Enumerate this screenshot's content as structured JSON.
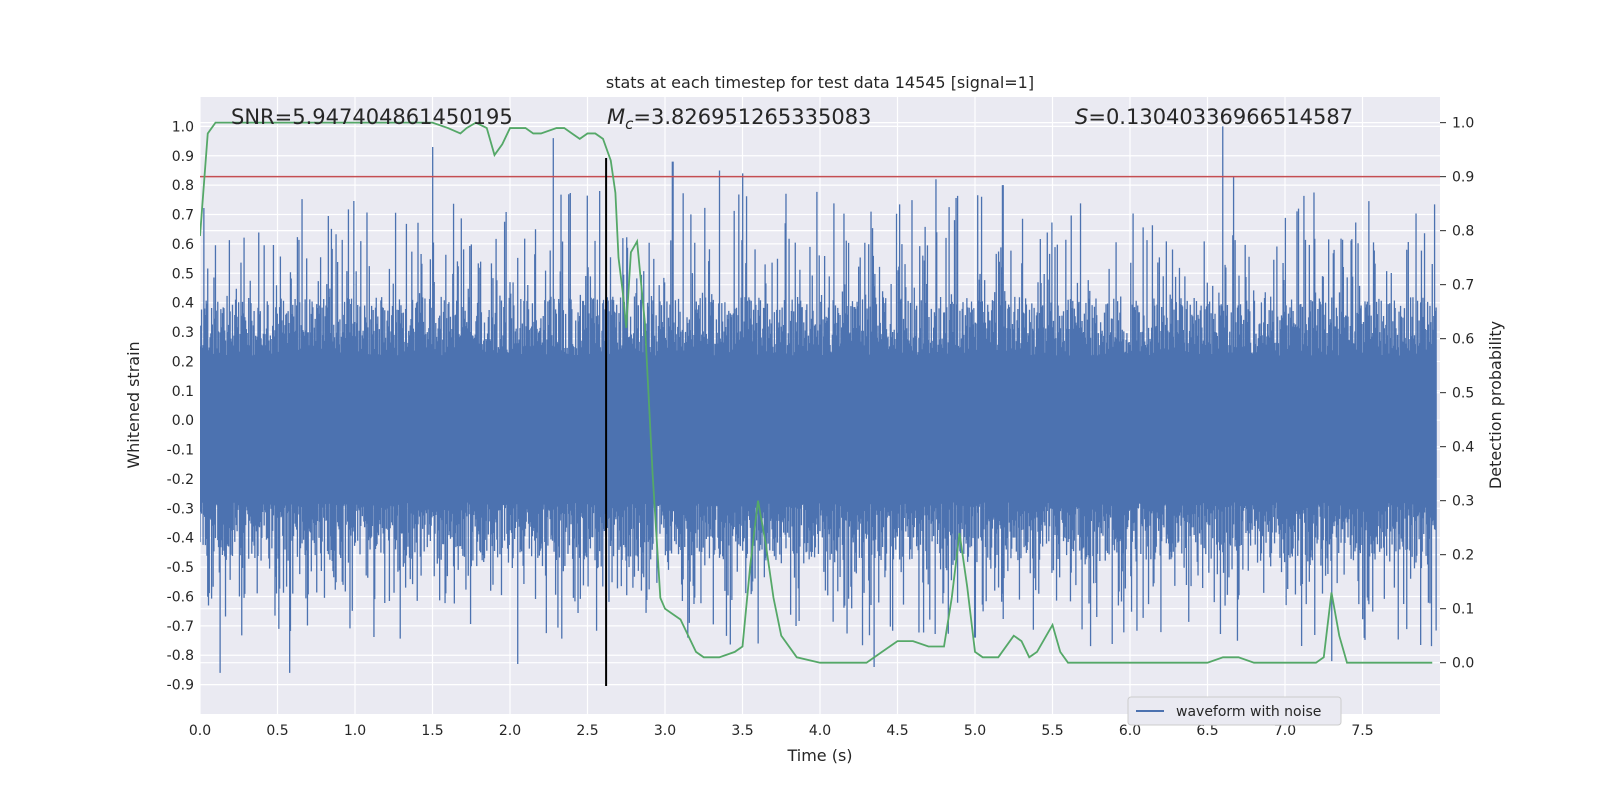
{
  "chart_data": {
    "type": "line",
    "title": "stats at each timestep for test data 14545 [signal=1]",
    "xlabel": "Time (s)",
    "ylabel_left": "Whitened strain",
    "ylabel_right": "Detection probability",
    "xlim": [
      0.0,
      8.0
    ],
    "ylim_left": [
      -1.0,
      1.1
    ],
    "ylim_right": [
      -0.095,
      1.0475
    ],
    "x_ticks": [
      "0.0",
      "0.5",
      "1.0",
      "1.5",
      "2.0",
      "2.5",
      "3.0",
      "3.5",
      "4.0",
      "4.5",
      "5.0",
      "5.5",
      "6.0",
      "6.5",
      "7.0",
      "7.5"
    ],
    "y_ticks_left": [
      "1.0",
      "0.9",
      "0.8",
      "0.7",
      "0.6",
      "0.5",
      "0.4",
      "0.3",
      "0.2",
      "0.1",
      "0.0",
      "-0.1",
      "-0.2",
      "-0.3",
      "-0.4",
      "-0.5",
      "-0.6",
      "-0.7",
      "-0.8",
      "-0.9"
    ],
    "y_ticks_right": [
      "1.0",
      "0.9",
      "0.8",
      "0.7",
      "0.6",
      "0.5",
      "0.4",
      "0.3",
      "0.2",
      "0.1",
      "0.0"
    ],
    "grid": true,
    "legend": {
      "placement": "lower-right",
      "entries": [
        "waveform with noise"
      ]
    },
    "annotations": {
      "snr": "SNR=5.947404861450195",
      "mc_symbol": "M",
      "mc_sub": "c",
      "mc_value": "=3.826951265335083",
      "s_symbol": "S",
      "s_value": "=0.13040336966514587"
    },
    "threshold": {
      "value": 0.9,
      "axis": "right",
      "color": "#c44e52"
    },
    "marker_time": 2.62,
    "waveform": {
      "name": "waveform with noise",
      "color": "#4c72b0",
      "duration": 7.98,
      "samples": 1600,
      "peaks_pos": [
        [
          1.5,
          0.93
        ],
        [
          2.28,
          0.96
        ],
        [
          2.58,
          0.78
        ],
        [
          3.05,
          0.88
        ],
        [
          3.35,
          0.85
        ],
        [
          3.5,
          0.84
        ],
        [
          4.75,
          0.82
        ],
        [
          5.18,
          0.8
        ],
        [
          6.6,
          1.0
        ],
        [
          6.67,
          0.83
        ]
      ],
      "peaks_neg": [
        [
          0.13,
          -0.86
        ],
        [
          0.58,
          -0.86
        ],
        [
          2.05,
          -0.83
        ],
        [
          4.35,
          -0.84
        ],
        [
          7.3,
          -0.82
        ],
        [
          3.6,
          -0.76
        ],
        [
          5.0,
          -0.74
        ]
      ],
      "typical_top": 0.4,
      "typical_bottom": -0.5
    },
    "probability": {
      "name": "detection probability",
      "color": "#55a868",
      "x": [
        0.0,
        0.05,
        0.1,
        0.2,
        0.5,
        1.0,
        1.5,
        1.6,
        1.68,
        1.72,
        1.78,
        1.85,
        1.9,
        1.95,
        2.0,
        2.05,
        2.1,
        2.15,
        2.2,
        2.3,
        2.35,
        2.4,
        2.45,
        2.5,
        2.55,
        2.6,
        2.65,
        2.68,
        2.7,
        2.73,
        2.75,
        2.78,
        2.82,
        2.87,
        2.92,
        2.97,
        3.0,
        3.05,
        3.1,
        3.2,
        3.25,
        3.35,
        3.45,
        3.5,
        3.55,
        3.6,
        3.65,
        3.7,
        3.75,
        3.85,
        4.0,
        4.2,
        4.3,
        4.4,
        4.5,
        4.6,
        4.7,
        4.8,
        4.85,
        4.9,
        4.95,
        5.0,
        5.05,
        5.15,
        5.25,
        5.3,
        5.35,
        5.4,
        5.5,
        5.55,
        5.6,
        5.7,
        5.8,
        5.9,
        6.0,
        6.1,
        6.2,
        6.3,
        6.4,
        6.5,
        6.6,
        6.7,
        6.8,
        6.9,
        7.0,
        7.1,
        7.2,
        7.25,
        7.3,
        7.35,
        7.4,
        7.5,
        7.6,
        7.7,
        7.8,
        7.9,
        7.95
      ],
      "y": [
        0.79,
        0.98,
        1.0,
        1.0,
        1.0,
        1.0,
        1.0,
        0.99,
        0.98,
        0.99,
        1.0,
        0.99,
        0.94,
        0.96,
        0.99,
        0.99,
        0.99,
        0.98,
        0.98,
        0.99,
        0.99,
        0.98,
        0.97,
        0.98,
        0.98,
        0.97,
        0.93,
        0.87,
        0.75,
        0.68,
        0.62,
        0.76,
        0.78,
        0.63,
        0.35,
        0.12,
        0.1,
        0.09,
        0.08,
        0.02,
        0.01,
        0.01,
        0.02,
        0.03,
        0.18,
        0.3,
        0.22,
        0.12,
        0.05,
        0.01,
        0.0,
        0.0,
        0.0,
        0.02,
        0.04,
        0.04,
        0.03,
        0.03,
        0.12,
        0.24,
        0.14,
        0.02,
        0.01,
        0.01,
        0.05,
        0.04,
        0.01,
        0.02,
        0.07,
        0.02,
        0.0,
        0.0,
        0.0,
        0.0,
        0.0,
        0.0,
        0.0,
        0.0,
        0.0,
        0.0,
        0.01,
        0.01,
        0.0,
        0.0,
        0.0,
        0.0,
        0.0,
        0.01,
        0.13,
        0.05,
        0.0,
        0.0,
        0.0,
        0.0,
        0.0,
        0.0,
        0.0
      ]
    }
  }
}
